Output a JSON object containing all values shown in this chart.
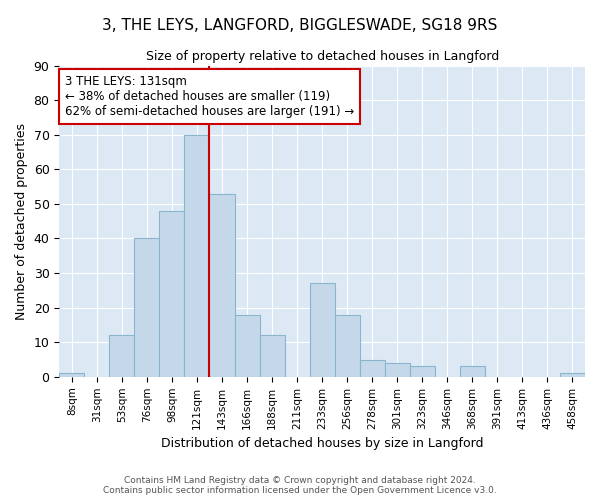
{
  "title": "3, THE LEYS, LANGFORD, BIGGLESWADE, SG18 9RS",
  "subtitle": "Size of property relative to detached houses in Langford",
  "xlabel": "Distribution of detached houses by size in Langford",
  "ylabel": "Number of detached properties",
  "categories": [
    "8sqm",
    "31sqm",
    "53sqm",
    "76sqm",
    "98sqm",
    "121sqm",
    "143sqm",
    "166sqm",
    "188sqm",
    "211sqm",
    "233sqm",
    "256sqm",
    "278sqm",
    "301sqm",
    "323sqm",
    "346sqm",
    "368sqm",
    "391sqm",
    "413sqm",
    "436sqm",
    "458sqm"
  ],
  "values": [
    1,
    0,
    12,
    40,
    48,
    70,
    53,
    18,
    12,
    0,
    27,
    18,
    5,
    4,
    3,
    0,
    3,
    0,
    0,
    0,
    1
  ],
  "bar_color": "#c5d8ea",
  "bar_edge_color": "#8ab4cc",
  "vline_color": "#cc0000",
  "annotation_text": "3 THE LEYS: 131sqm\n← 38% of detached houses are smaller (119)\n62% of semi-detached houses are larger (191) →",
  "annotation_box_color": "#ffffff",
  "annotation_box_edge": "#cc0000",
  "footnote": "Contains HM Land Registry data © Crown copyright and database right 2024.\nContains public sector information licensed under the Open Government Licence v3.0.",
  "ylim": [
    0,
    90
  ],
  "yticks": [
    0,
    10,
    20,
    30,
    40,
    50,
    60,
    70,
    80,
    90
  ],
  "background_color": "#ffffff",
  "plot_bg_color": "#dce9f5",
  "grid_color": "#ffffff",
  "vline_x_index": 6
}
